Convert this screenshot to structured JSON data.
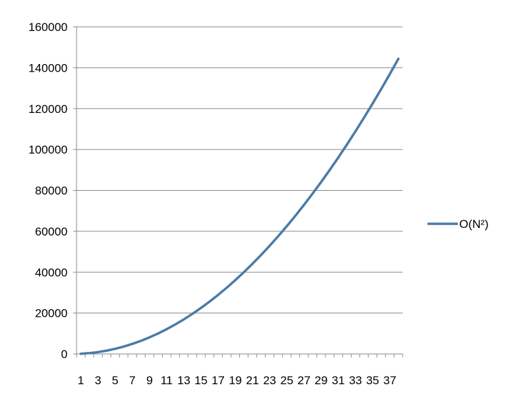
{
  "chart_data": {
    "type": "line",
    "title": "",
    "xlabel": "",
    "ylabel": "",
    "ylim": [
      0,
      160000
    ],
    "yticks": [
      0,
      20000,
      40000,
      60000,
      80000,
      100000,
      120000,
      140000,
      160000
    ],
    "ytick_labels": [
      "0",
      "20000",
      "40000",
      "60000",
      "80000",
      "100000",
      "120000",
      "140000",
      "160000"
    ],
    "x": [
      1,
      2,
      3,
      4,
      5,
      6,
      7,
      8,
      9,
      10,
      11,
      12,
      13,
      14,
      15,
      16,
      17,
      18,
      19,
      20,
      21,
      22,
      23,
      24,
      25,
      26,
      27,
      28,
      29,
      30,
      31,
      32,
      33,
      34,
      35,
      36,
      37,
      38
    ],
    "xtick_labels": [
      "1",
      "3",
      "5",
      "7",
      "9",
      "11",
      "13",
      "15",
      "17",
      "19",
      "21",
      "23",
      "25",
      "27",
      "29",
      "31",
      "33",
      "35",
      "37"
    ],
    "xtick_values": [
      1,
      3,
      5,
      7,
      9,
      11,
      13,
      15,
      17,
      19,
      21,
      23,
      25,
      27,
      29,
      31,
      33,
      35,
      37
    ],
    "grid": true,
    "legend_position": "right",
    "series": [
      {
        "name": "O(N²)",
        "color": "#4a7ba7",
        "values": [
          100,
          400,
          900,
          1600,
          2500,
          3600,
          4900,
          6400,
          8100,
          10000,
          12100,
          14400,
          16900,
          19600,
          22500,
          25600,
          28900,
          32400,
          36100,
          40000,
          44100,
          48400,
          52900,
          57600,
          62500,
          67600,
          72900,
          78400,
          84100,
          90000,
          96100,
          102400,
          108900,
          115600,
          122500,
          129600,
          136900,
          144400
        ]
      }
    ]
  }
}
